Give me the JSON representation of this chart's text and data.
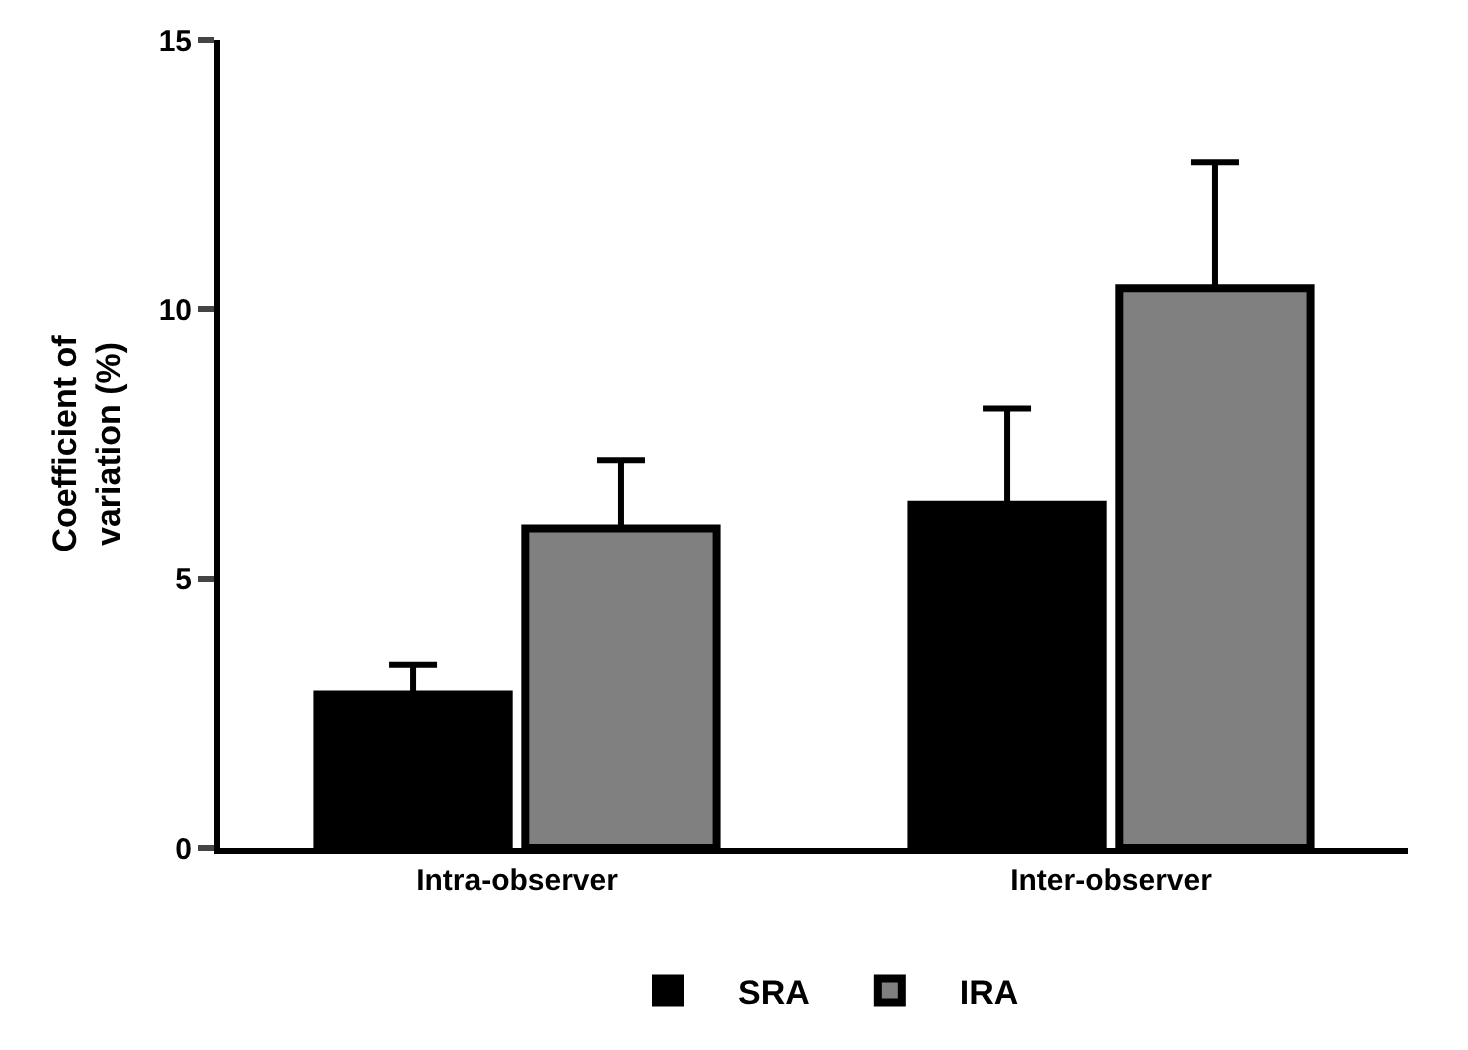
{
  "chart_data": {
    "type": "bar",
    "ylabel": "Coefficient of\nvariation (%)",
    "categories": [
      "Intra-observer",
      "Inter-observer"
    ],
    "series": [
      {
        "name": "SRA",
        "color": "#000000",
        "values": [
          2.85,
          6.37
        ],
        "errors": [
          [
            2.85,
            3.4
          ],
          [
            6.37,
            8.16
          ]
        ]
      },
      {
        "name": "IRA",
        "color": "#808080",
        "values": [
          5.93,
          10.39
        ],
        "errors": [
          [
            5.93,
            7.2
          ],
          [
            10.39,
            12.73
          ]
        ]
      }
    ],
    "ylim": [
      0,
      15
    ],
    "yticks": [
      0,
      5,
      10,
      15
    ],
    "legend": "bottom"
  }
}
